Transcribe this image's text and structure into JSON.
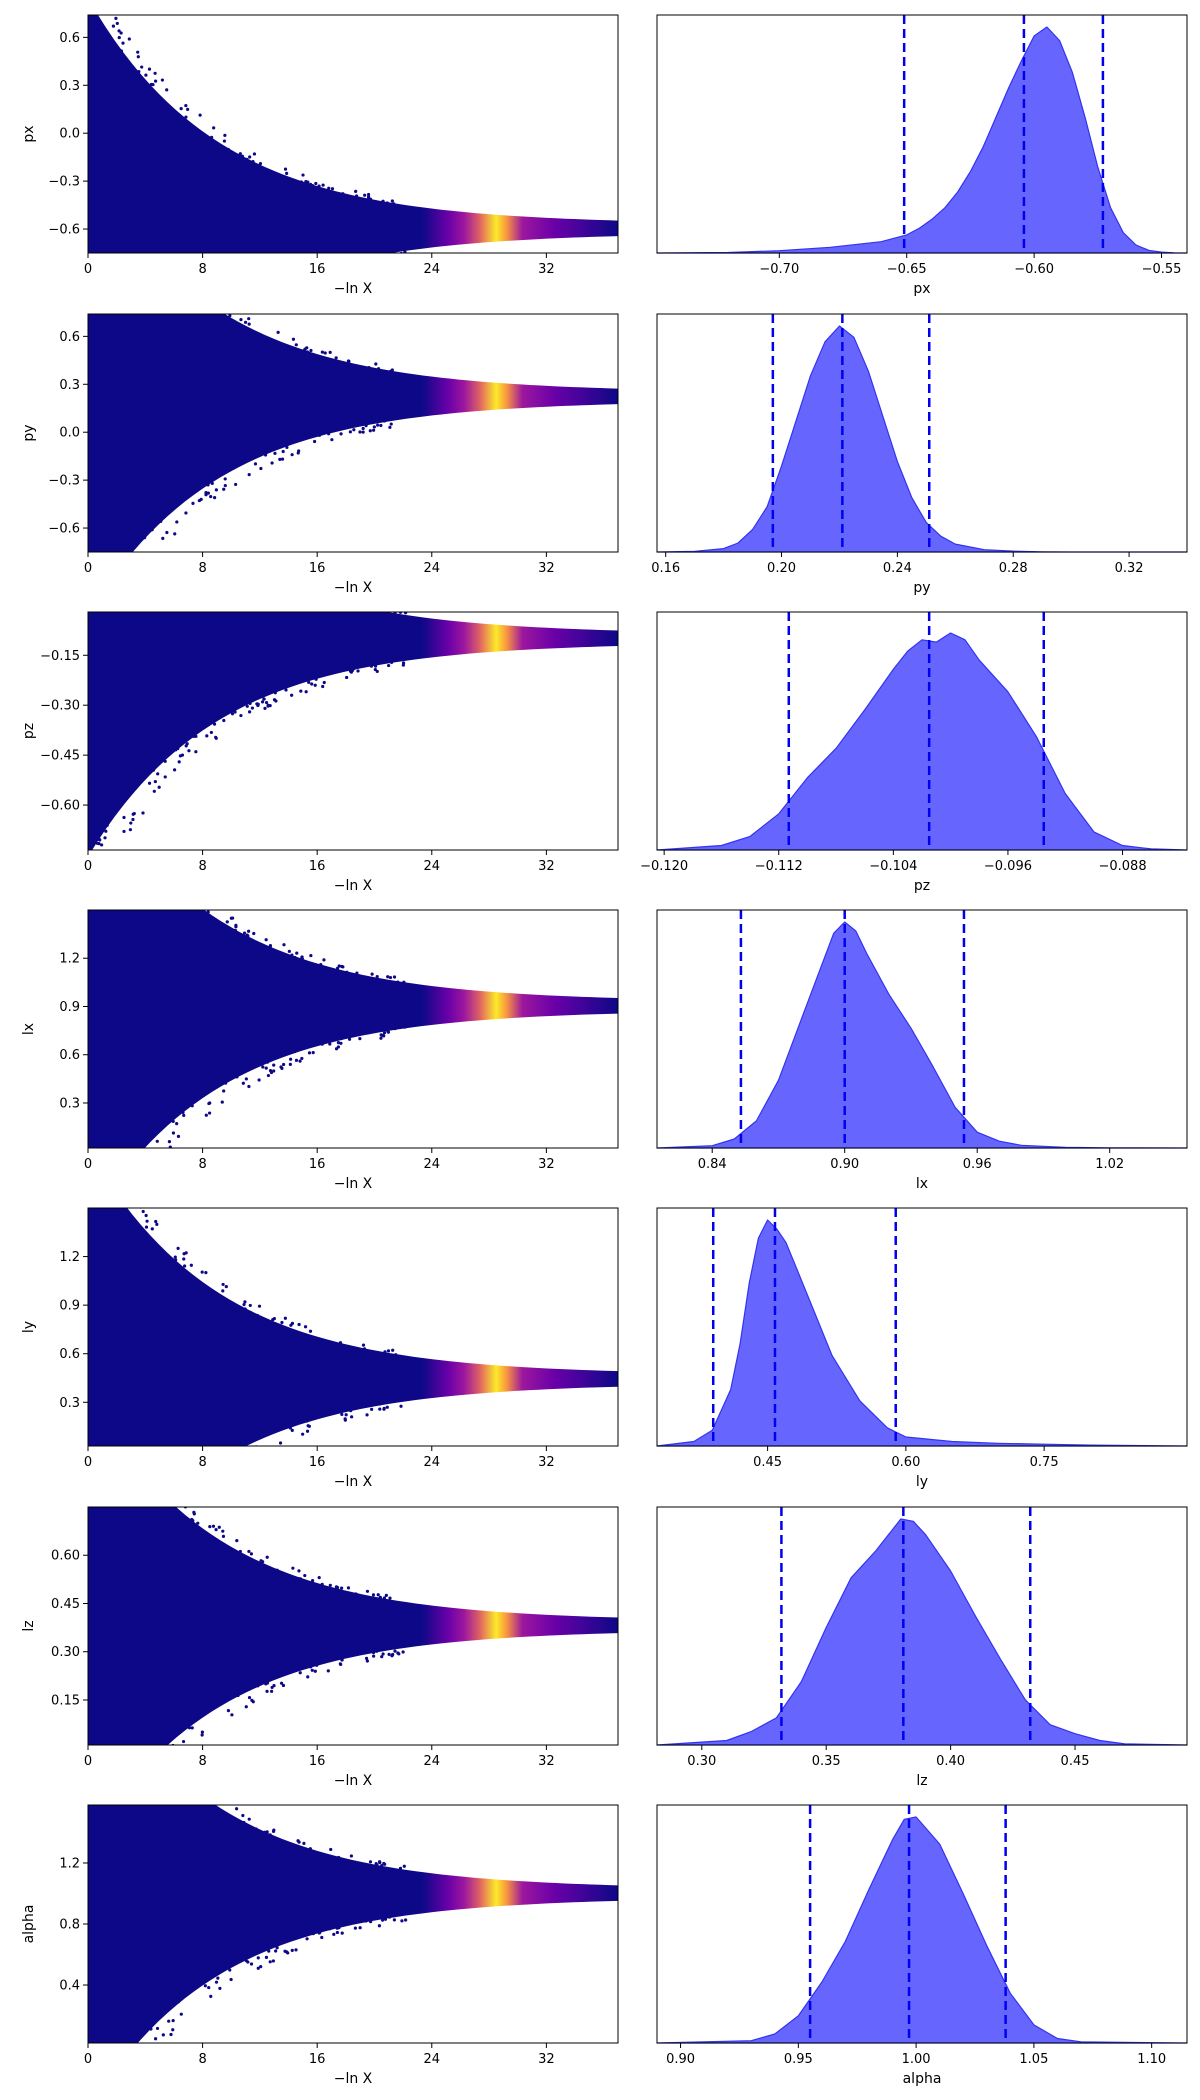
{
  "figure": {
    "background": "#ffffff"
  },
  "colors": {
    "trace_low": "#0d0887",
    "trace_mid": "#9c179e",
    "trace_peak": "#fcea29",
    "kde_fill": "#6666ff",
    "kde_edge": "#3333ee",
    "quantile_line": "#0000ee"
  },
  "chart_data": [
    {
      "type": "scatter",
      "param": "px",
      "xlabel": "−ln X",
      "ylabel": "px",
      "xlim": [
        0,
        37
      ],
      "ylim": [
        -0.75,
        0.74
      ],
      "xticks": [
        0,
        8,
        16,
        24,
        32
      ],
      "xtick_labels": [
        "0",
        "8",
        "16",
        "24",
        "32"
      ],
      "yticks": [
        -0.6,
        -0.3,
        0.0,
        0.3,
        0.6
      ],
      "ytick_labels": [
        "−0.6",
        "−0.3",
        "0.0",
        "0.3",
        "0.6"
      ],
      "converged_value": -0.6,
      "peak_x": 28,
      "colormap": "plasma"
    },
    {
      "type": "area",
      "param": "px",
      "xlabel": "px",
      "xlim": [
        -0.748,
        -0.54
      ],
      "xticks": [
        -0.7,
        -0.65,
        -0.6,
        -0.55
      ],
      "xtick_labels": [
        "−0.70",
        "−0.65",
        "−0.60",
        "−0.55"
      ],
      "x": [
        -0.748,
        -0.72,
        -0.7,
        -0.68,
        -0.66,
        -0.65,
        -0.645,
        -0.64,
        -0.635,
        -0.63,
        -0.625,
        -0.62,
        -0.615,
        -0.61,
        -0.605,
        -0.6,
        -0.595,
        -0.59,
        -0.585,
        -0.58,
        -0.575,
        -0.57,
        -0.565,
        -0.56,
        -0.555,
        -0.55,
        -0.545,
        -0.54
      ],
      "density": [
        0,
        0.002,
        0.01,
        0.025,
        0.05,
        0.08,
        0.11,
        0.15,
        0.2,
        0.27,
        0.36,
        0.47,
        0.6,
        0.73,
        0.85,
        0.96,
        1.0,
        0.94,
        0.8,
        0.6,
        0.38,
        0.2,
        0.09,
        0.035,
        0.012,
        0.004,
        0.001,
        0
      ],
      "quantiles": [
        -0.651,
        -0.604,
        -0.573
      ]
    },
    {
      "type": "scatter",
      "param": "py",
      "xlabel": "−ln X",
      "ylabel": "py",
      "xlim": [
        0,
        37
      ],
      "ylim": [
        -0.75,
        0.74
      ],
      "xticks": [
        0,
        8,
        16,
        24,
        32
      ],
      "xtick_labels": [
        "0",
        "8",
        "16",
        "24",
        "32"
      ],
      "yticks": [
        -0.6,
        -0.3,
        0.0,
        0.3,
        0.6
      ],
      "ytick_labels": [
        "−0.6",
        "−0.3",
        "0.0",
        "0.3",
        "0.6"
      ],
      "converged_value": 0.22,
      "peak_x": 28,
      "colormap": "plasma"
    },
    {
      "type": "area",
      "param": "py",
      "xlabel": "py",
      "xlim": [
        0.157,
        0.34
      ],
      "xticks": [
        0.16,
        0.2,
        0.24,
        0.28,
        0.32
      ],
      "xtick_labels": [
        "0.16",
        "0.20",
        "0.24",
        "0.28",
        "0.32"
      ],
      "x": [
        0.157,
        0.17,
        0.18,
        0.185,
        0.19,
        0.195,
        0.2,
        0.205,
        0.21,
        0.215,
        0.22,
        0.225,
        0.23,
        0.235,
        0.24,
        0.245,
        0.25,
        0.255,
        0.26,
        0.27,
        0.28,
        0.29,
        0.3,
        0.34
      ],
      "density": [
        0,
        0.003,
        0.015,
        0.04,
        0.1,
        0.2,
        0.38,
        0.58,
        0.78,
        0.93,
        1.0,
        0.95,
        0.8,
        0.6,
        0.4,
        0.24,
        0.13,
        0.07,
        0.035,
        0.01,
        0.004,
        0.001,
        0,
        0
      ],
      "quantiles": [
        0.197,
        0.221,
        0.251
      ]
    },
    {
      "type": "scatter",
      "param": "pz",
      "xlabel": "−ln X",
      "ylabel": "pz",
      "xlim": [
        0,
        37
      ],
      "ylim": [
        -0.735,
        -0.02
      ],
      "xticks": [
        0,
        8,
        16,
        24,
        32
      ],
      "xtick_labels": [
        "0",
        "8",
        "16",
        "24",
        "32"
      ],
      "yticks": [
        -0.6,
        -0.45,
        -0.3,
        -0.15
      ],
      "ytick_labels": [
        "−0.60",
        "−0.45",
        "−0.30",
        "−0.15"
      ],
      "converged_value": -0.101,
      "peak_x": 28,
      "colormap": "plasma"
    },
    {
      "type": "area",
      "param": "pz",
      "xlabel": "pz",
      "xlim": [
        -0.1205,
        -0.0835
      ],
      "xticks": [
        -0.12,
        -0.112,
        -0.104,
        -0.096,
        -0.088
      ],
      "xtick_labels": [
        "−0.120",
        "−0.112",
        "−0.104",
        "−0.096",
        "−0.088"
      ],
      "x": [
        -0.1205,
        -0.116,
        -0.114,
        -0.112,
        -0.11,
        -0.108,
        -0.106,
        -0.104,
        -0.103,
        -0.102,
        -0.101,
        -0.1,
        -0.099,
        -0.098,
        -0.096,
        -0.094,
        -0.092,
        -0.09,
        -0.088,
        -0.086,
        -0.0835
      ],
      "density": [
        0,
        0.02,
        0.06,
        0.16,
        0.32,
        0.45,
        0.62,
        0.8,
        0.88,
        0.93,
        0.92,
        0.96,
        0.93,
        0.84,
        0.7,
        0.5,
        0.25,
        0.08,
        0.02,
        0.005,
        0
      ],
      "quantiles": [
        -0.1113,
        -0.1015,
        -0.0935
      ]
    },
    {
      "type": "scatter",
      "param": "lx",
      "xlabel": "−ln X",
      "ylabel": "lx",
      "xlim": [
        0,
        37
      ],
      "ylim": [
        0.02,
        1.5
      ],
      "xticks": [
        0,
        8,
        16,
        24,
        32
      ],
      "xtick_labels": [
        "0",
        "8",
        "16",
        "24",
        "32"
      ],
      "yticks": [
        0.3,
        0.6,
        0.9,
        1.2
      ],
      "ytick_labels": [
        "0.3",
        "0.6",
        "0.9",
        "1.2"
      ],
      "converged_value": 0.9,
      "peak_x": 28,
      "colormap": "plasma"
    },
    {
      "type": "area",
      "param": "lx",
      "xlabel": "lx",
      "xlim": [
        0.815,
        1.055
      ],
      "xticks": [
        0.84,
        0.9,
        0.96,
        1.02
      ],
      "xtick_labels": [
        "0.84",
        "0.90",
        "0.96",
        "1.02"
      ],
      "x": [
        0.815,
        0.84,
        0.85,
        0.86,
        0.87,
        0.88,
        0.89,
        0.895,
        0.9,
        0.905,
        0.91,
        0.92,
        0.93,
        0.94,
        0.95,
        0.96,
        0.97,
        0.98,
        1.0,
        1.02,
        1.055
      ],
      "density": [
        0,
        0.01,
        0.04,
        0.12,
        0.3,
        0.56,
        0.82,
        0.95,
        1.0,
        0.96,
        0.86,
        0.68,
        0.53,
        0.36,
        0.18,
        0.07,
        0.03,
        0.012,
        0.003,
        0.001,
        0
      ],
      "quantiles": [
        0.853,
        0.9,
        0.954
      ]
    },
    {
      "type": "scatter",
      "param": "ly",
      "xlabel": "−ln X",
      "ylabel": "ly",
      "xlim": [
        0,
        37
      ],
      "ylim": [
        0.03,
        1.5
      ],
      "xticks": [
        0,
        8,
        16,
        24,
        32
      ],
      "xtick_labels": [
        "0",
        "8",
        "16",
        "24",
        "32"
      ],
      "yticks": [
        0.3,
        0.6,
        0.9,
        1.2
      ],
      "ytick_labels": [
        "0.3",
        "0.6",
        "0.9",
        "1.2"
      ],
      "converged_value": 0.44,
      "peak_x": 28,
      "colormap": "plasma"
    },
    {
      "type": "area",
      "param": "ly",
      "xlabel": "ly",
      "xlim": [
        0.33,
        0.905
      ],
      "xticks": [
        0.45,
        0.6,
        0.75
      ],
      "xtick_labels": [
        "0.45",
        "0.60",
        "0.75"
      ],
      "x": [
        0.33,
        0.37,
        0.39,
        0.41,
        0.42,
        0.43,
        0.44,
        0.45,
        0.46,
        0.47,
        0.48,
        0.5,
        0.52,
        0.55,
        0.58,
        0.6,
        0.65,
        0.7,
        0.75,
        0.8,
        0.905
      ],
      "density": [
        0,
        0.02,
        0.07,
        0.25,
        0.45,
        0.72,
        0.92,
        1.0,
        0.96,
        0.9,
        0.8,
        0.6,
        0.4,
        0.2,
        0.08,
        0.04,
        0.02,
        0.012,
        0.008,
        0.004,
        0
      ],
      "quantiles": [
        0.391,
        0.458,
        0.589
      ]
    },
    {
      "type": "scatter",
      "param": "lz",
      "xlabel": "−ln X",
      "ylabel": "lz",
      "xlim": [
        0,
        37
      ],
      "ylim": [
        0.01,
        0.75
      ],
      "xticks": [
        0,
        8,
        16,
        24,
        32
      ],
      "xtick_labels": [
        "0",
        "8",
        "16",
        "24",
        "32"
      ],
      "yticks": [
        0.15,
        0.3,
        0.45,
        0.6
      ],
      "ytick_labels": [
        "0.15",
        "0.30",
        "0.45",
        "0.60"
      ],
      "converged_value": 0.38,
      "peak_x": 28,
      "colormap": "plasma"
    },
    {
      "type": "area",
      "param": "lz",
      "xlabel": "lz",
      "xlim": [
        0.282,
        0.495
      ],
      "xticks": [
        0.3,
        0.35,
        0.4,
        0.45
      ],
      "xtick_labels": [
        "0.30",
        "0.35",
        "0.40",
        "0.45"
      ],
      "x": [
        0.282,
        0.31,
        0.32,
        0.33,
        0.34,
        0.35,
        0.36,
        0.37,
        0.375,
        0.38,
        0.385,
        0.39,
        0.4,
        0.41,
        0.42,
        0.43,
        0.44,
        0.45,
        0.46,
        0.47,
        0.495
      ],
      "density": [
        0,
        0.02,
        0.06,
        0.12,
        0.28,
        0.52,
        0.74,
        0.86,
        0.93,
        1.0,
        0.99,
        0.93,
        0.77,
        0.57,
        0.38,
        0.2,
        0.09,
        0.05,
        0.02,
        0.005,
        0
      ],
      "quantiles": [
        0.332,
        0.381,
        0.432
      ]
    },
    {
      "type": "scatter",
      "param": "alpha",
      "xlabel": "−ln X",
      "ylabel": "alpha",
      "xlim": [
        0,
        37
      ],
      "ylim": [
        0.02,
        1.58
      ],
      "xticks": [
        0,
        8,
        16,
        24,
        32
      ],
      "xtick_labels": [
        "0",
        "8",
        "16",
        "24",
        "32"
      ],
      "yticks": [
        0.4,
        0.8,
        1.2
      ],
      "ytick_labels": [
        "0.4",
        "0.8",
        "1.2"
      ],
      "converged_value": 0.998,
      "peak_x": 28,
      "colormap": "plasma"
    },
    {
      "type": "area",
      "param": "alpha",
      "xlabel": "alpha",
      "xlim": [
        0.89,
        1.115
      ],
      "xticks": [
        0.9,
        0.95,
        1.0,
        1.05,
        1.1
      ],
      "xtick_labels": [
        "0.90",
        "0.95",
        "1.00",
        "1.05",
        "1.10"
      ],
      "x": [
        0.89,
        0.93,
        0.94,
        0.95,
        0.96,
        0.97,
        0.98,
        0.99,
        0.995,
        1.0,
        1.01,
        1.02,
        1.03,
        1.04,
        1.05,
        1.06,
        1.07,
        1.115
      ],
      "density": [
        0,
        0.01,
        0.04,
        0.12,
        0.27,
        0.45,
        0.68,
        0.9,
        0.99,
        1.0,
        0.88,
        0.66,
        0.43,
        0.22,
        0.08,
        0.02,
        0.005,
        0
      ],
      "quantiles": [
        0.955,
        0.997,
        1.038
      ]
    }
  ]
}
